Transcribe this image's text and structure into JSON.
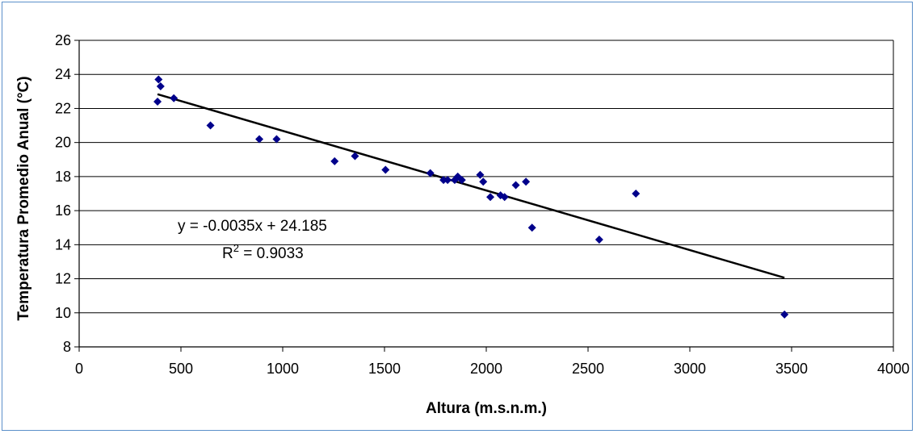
{
  "chart_data": {
    "type": "scatter",
    "xlabel": "Altura (m.s.n.m.)",
    "ylabel": "Temperatura Promedio Anual (°C)",
    "xlim": [
      0,
      4000
    ],
    "ylim": [
      8,
      26
    ],
    "xticks": [
      "0",
      "500",
      "1000",
      "1500",
      "2000",
      "2500",
      "3000",
      "3500",
      "4000"
    ],
    "yticks": [
      "8",
      "10",
      "12",
      "14",
      "16",
      "18",
      "20",
      "22",
      "24",
      "26"
    ],
    "grid": "horizontal",
    "marker_color": "#00008b",
    "series": [
      {
        "points": [
          [
            390,
            23.7
          ],
          [
            400,
            23.3
          ],
          [
            385,
            22.4
          ],
          [
            465,
            22.6
          ],
          [
            645,
            21.0
          ],
          [
            885,
            20.2
          ],
          [
            970,
            20.2
          ],
          [
            1255,
            18.9
          ],
          [
            1355,
            19.2
          ],
          [
            1505,
            18.4
          ],
          [
            1725,
            18.2
          ],
          [
            1790,
            17.8
          ],
          [
            1810,
            17.8
          ],
          [
            1845,
            17.8
          ],
          [
            1860,
            18.0
          ],
          [
            1880,
            17.8
          ],
          [
            1970,
            18.1
          ],
          [
            1985,
            17.7
          ],
          [
            2020,
            16.8
          ],
          [
            2070,
            16.9
          ],
          [
            2090,
            16.8
          ],
          [
            2145,
            17.5
          ],
          [
            2195,
            17.7
          ],
          [
            2225,
            15.0
          ],
          [
            2555,
            14.3
          ],
          [
            2735,
            17.0
          ],
          [
            3465,
            9.9
          ]
        ]
      }
    ],
    "trendline": {
      "slope": -0.0035,
      "intercept": 24.185,
      "x_range": [
        385,
        3465
      ],
      "color": "#000000"
    },
    "annotations": {
      "equation": "y = -0.0035x + 24.185",
      "r2_prefix": "R",
      "r2_sup": "2",
      "r2_value": " = 0.9033"
    }
  }
}
